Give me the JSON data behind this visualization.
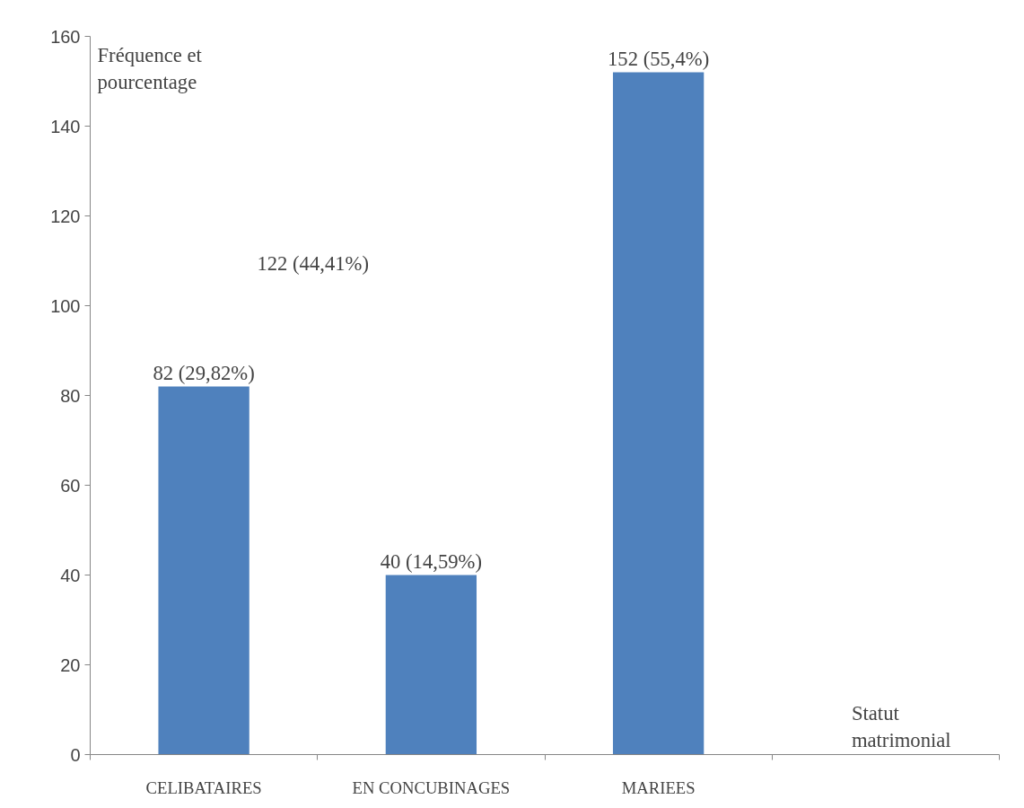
{
  "chart_data": {
    "type": "bar",
    "ylabel": "Fréquence et pourcentage",
    "xlabel": "Statut matrimonial",
    "categories": [
      "CELIBATAIRES",
      "EN CONCUBINAGES",
      "MARIEES",
      null
    ],
    "values": [
      82,
      40,
      152,
      null
    ],
    "value_labels": [
      "82 (29,82%)",
      "40 (14,59%)",
      "152 (55,4%)",
      null
    ],
    "color": "#4f81bd",
    "ylim": [
      0,
      160
    ],
    "yticks": [
      0,
      20,
      40,
      60,
      80,
      100,
      120,
      140,
      160
    ],
    "annotations": [
      "122 (44,41%)"
    ],
    "grid": false
  }
}
